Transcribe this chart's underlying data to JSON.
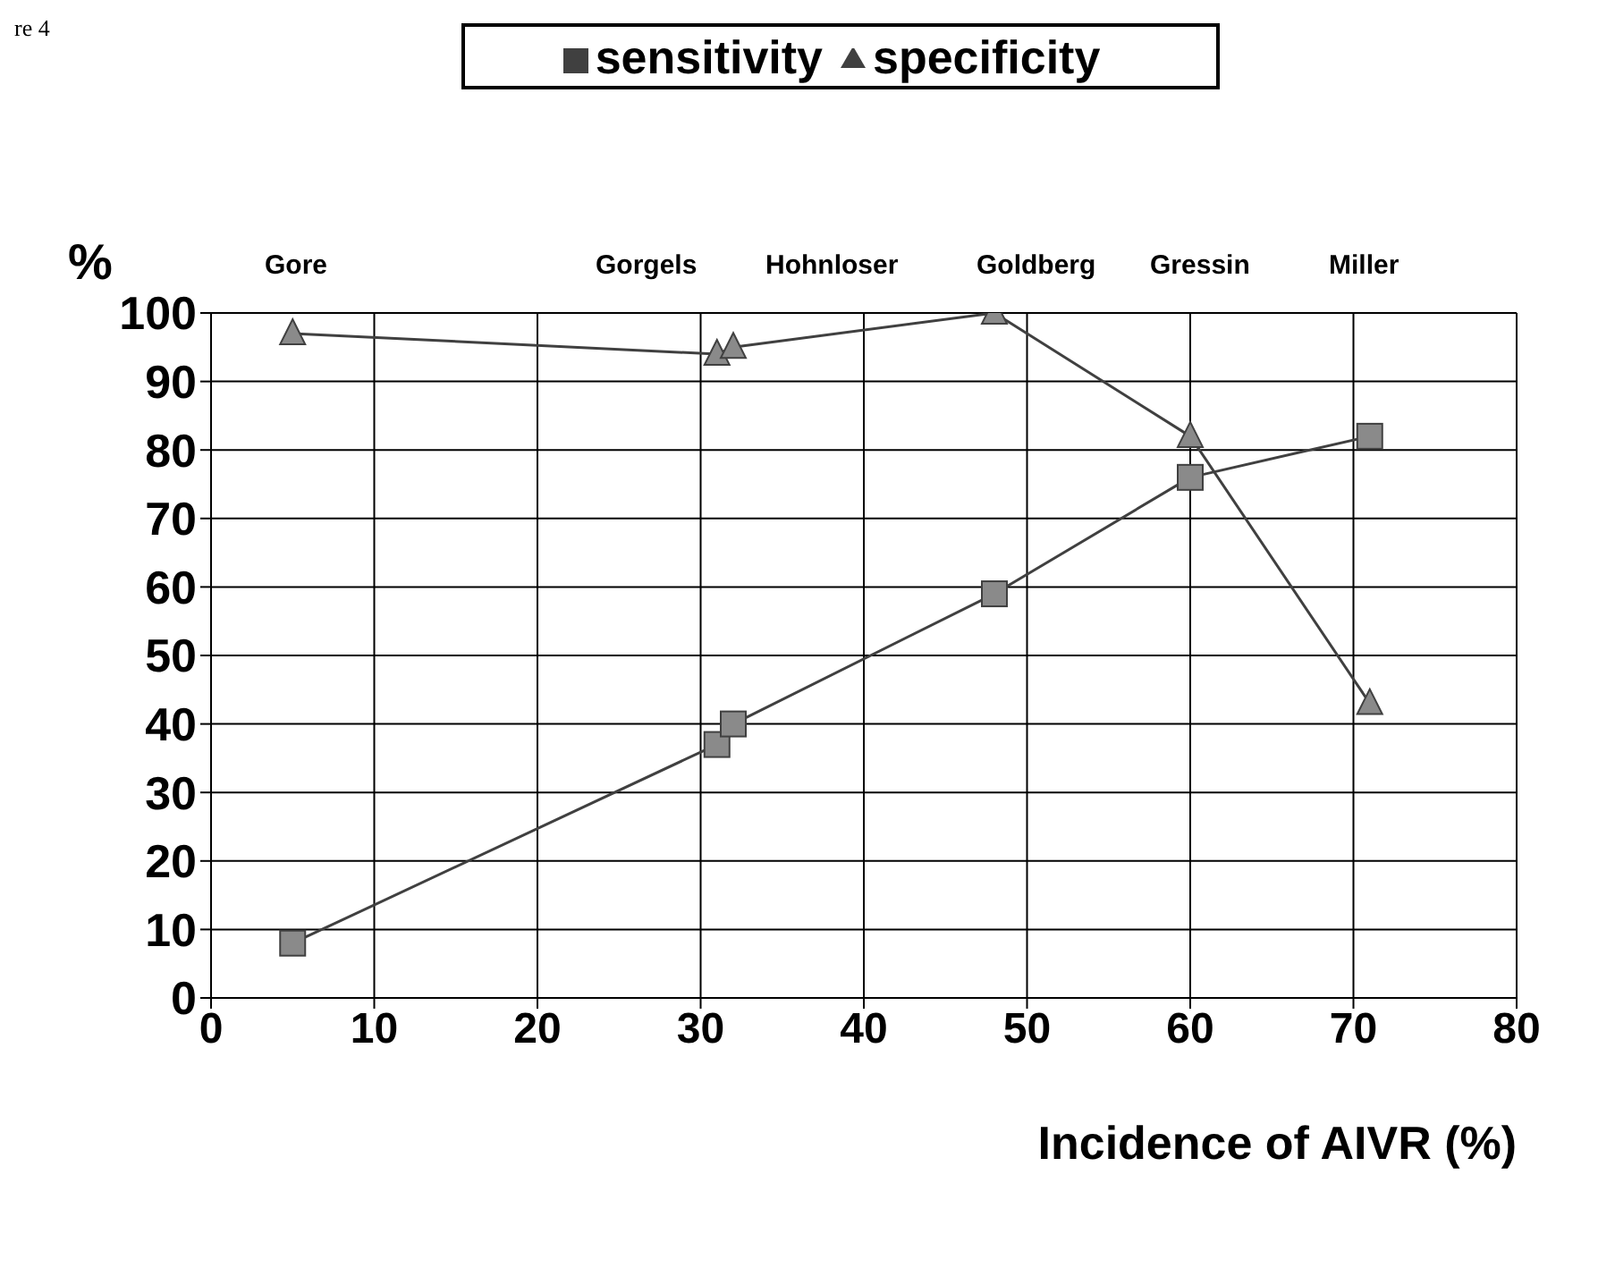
{
  "chart_data": {
    "type": "line",
    "xlabel": "Incidence of AIVR (%)",
    "ylabel": "%",
    "series": [
      {
        "name": "sensitivity",
        "color": "#404040",
        "marker": "square",
        "x": [
          5,
          31,
          32,
          48,
          60,
          71
        ],
        "values": [
          8,
          37,
          40,
          59,
          76,
          82
        ]
      },
      {
        "name": "specificity",
        "color": "#404040",
        "marker": "triangle",
        "x": [
          5,
          31,
          32,
          48,
          60,
          71
        ],
        "values": [
          97,
          94,
          95,
          100,
          82,
          43
        ]
      }
    ],
    "xlim": [
      0,
      80
    ],
    "xticks": [
      0,
      10,
      20,
      30,
      40,
      50,
      60,
      70,
      80
    ],
    "ylim": [
      0,
      100
    ],
    "yticks": [
      0,
      10,
      20,
      30,
      40,
      50,
      60,
      70,
      80,
      90,
      100
    ],
    "grid": true,
    "legend": "top",
    "line_style": "solid",
    "annotations": [
      "re 4",
      "Gore",
      "Gorgels",
      "Hohnloser",
      "Goldberg",
      "Gressin",
      "Miller"
    ]
  }
}
